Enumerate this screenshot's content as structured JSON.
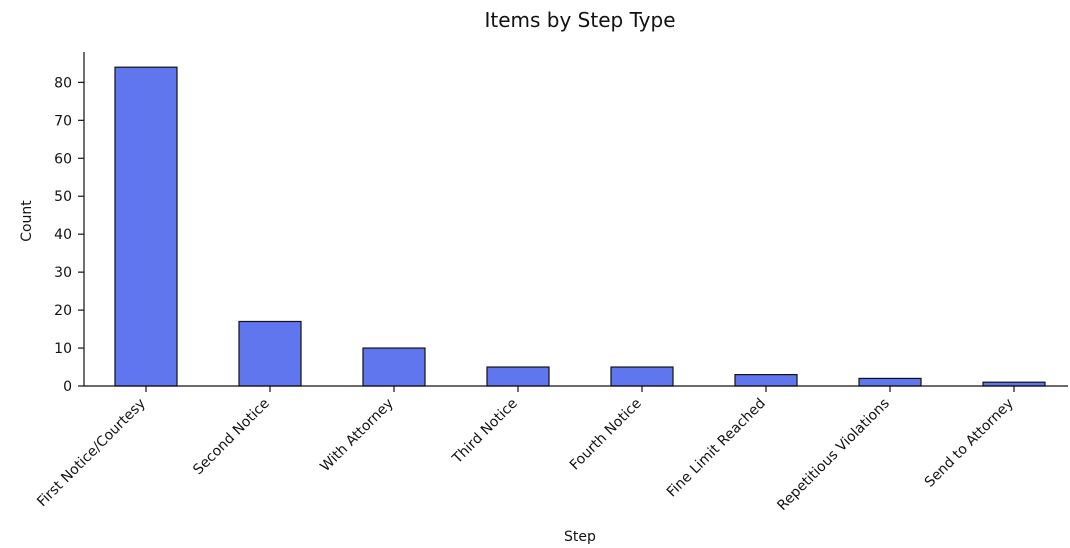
{
  "chart_data": {
    "type": "bar",
    "title": "Items by Step Type",
    "xlabel": "Step",
    "ylabel": "Count",
    "categories": [
      "First Notice/Courtesy",
      "Second Notice",
      "With Attorney",
      "Third Notice",
      "Fourth Notice",
      "Fine Limit Reached",
      "Repetitious Violations",
      "Send to Attorney"
    ],
    "values": [
      84,
      17,
      10,
      5,
      5,
      3,
      2,
      1
    ],
    "ylim": [
      0,
      88
    ],
    "yticks": [
      0,
      10,
      20,
      30,
      40,
      50,
      60,
      70,
      80
    ],
    "bar_color": "#5f76ee",
    "grid": false,
    "legend": "none"
  }
}
